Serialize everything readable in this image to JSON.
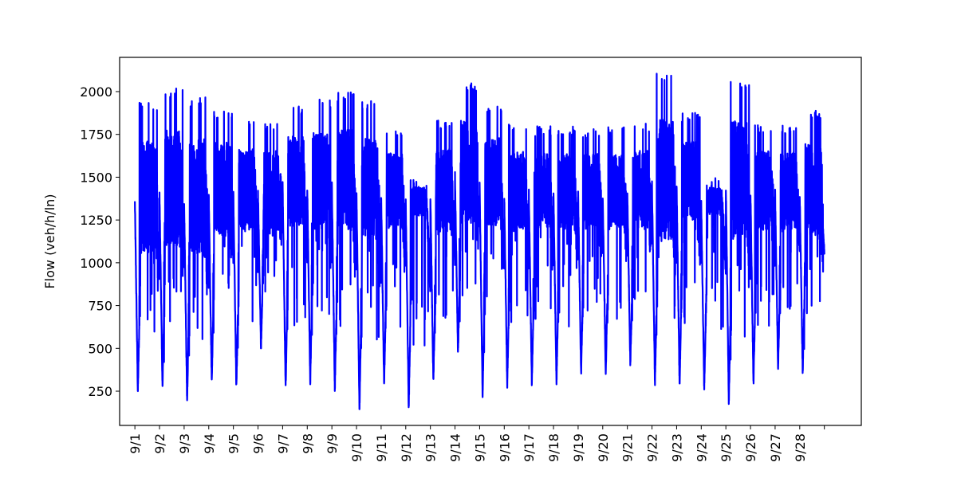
{
  "chart_data": {
    "type": "line",
    "title": "",
    "xlabel": "",
    "ylabel": "Flow (veh/h/ln)",
    "x_tick_labels": [
      "9/1",
      "9/2",
      "9/3",
      "9/4",
      "9/5",
      "9/6",
      "9/7",
      "9/8",
      "9/9",
      "9/10",
      "9/11",
      "9/12",
      "9/13",
      "9/14",
      "9/15",
      "9/16",
      "9/17",
      "9/18",
      "9/19",
      "9/20",
      "9/21",
      "9/22",
      "9/23",
      "9/24",
      "9/25",
      "9/26",
      "9/27",
      "9/28",
      ""
    ],
    "y_ticks": [
      250,
      500,
      750,
      1000,
      1250,
      1500,
      1750,
      2000
    ],
    "y_tick_labels": [
      "250",
      "500",
      "750",
      "1000",
      "1250",
      "1500",
      "1750",
      "2000"
    ],
    "xlim_days": [
      -0.62,
      29.5
    ],
    "ylim": [
      50,
      2200
    ],
    "grid": false,
    "legend": "none",
    "series": [
      {
        "color": "#0000ff",
        "daily": [
          {
            "min": 240,
            "peak": 1950,
            "mid": 1350
          },
          {
            "min": 280,
            "peak": 2020,
            "mid": 1400
          },
          {
            "min": 190,
            "peak": 1970,
            "mid": 1350
          },
          {
            "min": 300,
            "peak": 1900,
            "mid": 1400
          },
          {
            "min": 260,
            "peak": 1840,
            "mid": 1400
          },
          {
            "min": 500,
            "peak": 1820,
            "mid": 1400
          },
          {
            "min": 260,
            "peak": 1930,
            "mid": 1450
          },
          {
            "min": 290,
            "peak": 1960,
            "mid": 1450
          },
          {
            "min": 250,
            "peak": 2000,
            "mid": 1450
          },
          {
            "min": 145,
            "peak": 1950,
            "mid": 1400
          },
          {
            "min": 280,
            "peak": 1800,
            "mid": 1400
          },
          {
            "min": 145,
            "peak": 1500,
            "mid": 1350
          },
          {
            "min": 300,
            "peak": 1840,
            "mid": 1400
          },
          {
            "min": 460,
            "peak": 2050,
            "mid": 1500
          },
          {
            "min": 215,
            "peak": 1920,
            "mid": 1450
          },
          {
            "min": 270,
            "peak": 1820,
            "mid": 1400
          },
          {
            "min": 280,
            "peak": 1800,
            "mid": 1400
          },
          {
            "min": 290,
            "peak": 1800,
            "mid": 1400
          },
          {
            "min": 350,
            "peak": 1790,
            "mid": 1400
          },
          {
            "min": 350,
            "peak": 1800,
            "mid": 1400
          },
          {
            "min": 400,
            "peak": 1820,
            "mid": 1400
          },
          {
            "min": 285,
            "peak": 2110,
            "mid": 1450
          },
          {
            "min": 275,
            "peak": 1880,
            "mid": 1450
          },
          {
            "min": 260,
            "peak": 1500,
            "mid": 1350
          },
          {
            "min": 175,
            "peak": 2080,
            "mid": 1450
          },
          {
            "min": 290,
            "peak": 1820,
            "mid": 1400
          },
          {
            "min": 380,
            "peak": 1810,
            "mid": 1400
          },
          {
            "min": 355,
            "peak": 1890,
            "mid": 1400
          }
        ],
        "end": {
          "day": 28.0,
          "value": 1050
        }
      }
    ]
  }
}
